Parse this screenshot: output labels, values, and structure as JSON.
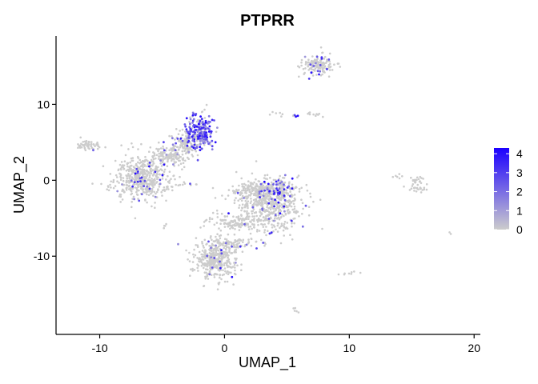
{
  "chart_data": {
    "type": "scatter",
    "title": "PTPRR",
    "xlabel": "UMAP_1",
    "ylabel": "UMAP_2",
    "xlim": [
      -13.5,
      20.5
    ],
    "ylim": [
      -20.3,
      19.0
    ],
    "x_ticks": [
      -10,
      0,
      10,
      20
    ],
    "x_tick_labels": [
      "-10",
      "0",
      "10",
      "20"
    ],
    "y_ticks": [
      -10,
      0,
      10
    ],
    "y_tick_labels": [
      "-10",
      "0",
      "10"
    ],
    "grid": false,
    "legend": {
      "placement": "right",
      "type": "colorbar",
      "min": 0,
      "max": 4.3,
      "ticks": [
        0,
        1,
        2,
        3,
        4
      ],
      "tick_labels": [
        "0",
        "1",
        "2",
        "3",
        "4"
      ]
    },
    "colors": {
      "low": "#cccccc",
      "high": "#1b00ff"
    },
    "clusters": [
      {
        "name": "left small",
        "cx": -10.8,
        "cy": 4.6,
        "sx": 0.45,
        "sy": 0.35,
        "n": 60,
        "expr_frac": 0.05
      },
      {
        "name": "left big",
        "cx": -6.6,
        "cy": 0.4,
        "sx": 1.1,
        "sy": 1.4,
        "n": 520,
        "expr_frac": 0.05
      },
      {
        "name": "left bridge",
        "cx": -4.3,
        "cy": 3.2,
        "sx": 0.9,
        "sy": 0.8,
        "n": 140,
        "expr_frac": 0.05
      },
      {
        "name": "upper arm",
        "cx": -3.0,
        "cy": 4.8,
        "sx": 0.6,
        "sy": 0.9,
        "n": 130,
        "expr_frac": 0.12
      },
      {
        "name": "top expressing",
        "cx": -1.9,
        "cy": 6.4,
        "sx": 0.55,
        "sy": 1.1,
        "n": 220,
        "expr_frac": 0.75
      },
      {
        "name": "top right blob",
        "cx": 7.4,
        "cy": 15.2,
        "sx": 0.7,
        "sy": 0.6,
        "n": 150,
        "expr_frac": 0.12
      },
      {
        "name": "middle main",
        "cx": 3.8,
        "cy": -3.5,
        "sx": 1.4,
        "sy": 1.6,
        "n": 500,
        "expr_frac": 0.05
      },
      {
        "name": "middle upper",
        "cx": 2.6,
        "cy": -1.3,
        "sx": 1.1,
        "sy": 0.6,
        "n": 220,
        "expr_frac": 0.05
      },
      {
        "name": "middle edge",
        "cx": 4.6,
        "cy": -1.3,
        "sx": 0.4,
        "sy": 0.8,
        "n": 80,
        "expr_frac": 0.45
      },
      {
        "name": "middle left tail",
        "cx": 1.0,
        "cy": -5.5,
        "sx": 1.2,
        "sy": 0.6,
        "n": 120,
        "expr_frac": 0.03
      },
      {
        "name": "bottom",
        "cx": -0.7,
        "cy": -10.6,
        "sx": 0.8,
        "sy": 1.1,
        "n": 360,
        "expr_frac": 0.03
      },
      {
        "name": "bottom neck",
        "cx": 0.5,
        "cy": -8.3,
        "sx": 1.2,
        "sy": 0.4,
        "n": 110,
        "expr_frac": 0.03
      },
      {
        "name": "far right a",
        "cx": 15.3,
        "cy": 0.0,
        "sx": 0.35,
        "sy": 0.25,
        "n": 22,
        "expr_frac": 0.0
      },
      {
        "name": "far right b",
        "cx": 15.6,
        "cy": -1.1,
        "sx": 0.5,
        "sy": 0.2,
        "n": 22,
        "expr_frac": 0.0
      },
      {
        "name": "far right c",
        "cx": 13.9,
        "cy": 0.6,
        "sx": 0.2,
        "sy": 0.15,
        "n": 6,
        "expr_frac": 0.0
      },
      {
        "name": "mid small dots",
        "cx": 7.1,
        "cy": 8.7,
        "sx": 0.4,
        "sy": 0.15,
        "n": 10,
        "expr_frac": 0.0
      },
      {
        "name": "mid small dots 2",
        "cx": 5.7,
        "cy": 8.5,
        "sx": 0.15,
        "sy": 0.15,
        "n": 6,
        "expr_frac": 0.5
      },
      {
        "name": "mid small dots 3",
        "cx": 4.3,
        "cy": 8.9,
        "sx": 0.5,
        "sy": 0.2,
        "n": 6,
        "expr_frac": 0.0
      },
      {
        "name": "lower right dots",
        "cx": 9.9,
        "cy": -12.4,
        "sx": 0.45,
        "sy": 0.2,
        "n": 8,
        "expr_frac": 0.0
      },
      {
        "name": "bottom right dots",
        "cx": 5.8,
        "cy": -17.0,
        "sx": 0.2,
        "sy": 0.2,
        "n": 5,
        "expr_frac": 0.0
      },
      {
        "name": "small left dots",
        "cx": -4.8,
        "cy": -6.2,
        "sx": 0.1,
        "sy": 0.2,
        "n": 4,
        "expr_frac": 0.0
      },
      {
        "name": "left stray",
        "cx": -3.0,
        "cy": -0.6,
        "sx": 0.6,
        "sy": 0.2,
        "n": 10,
        "expr_frac": 0.1
      },
      {
        "name": "far right stray",
        "cx": 18.1,
        "cy": -7.0,
        "sx": 0.1,
        "sy": 0.1,
        "n": 2,
        "expr_frac": 0.0
      }
    ]
  }
}
